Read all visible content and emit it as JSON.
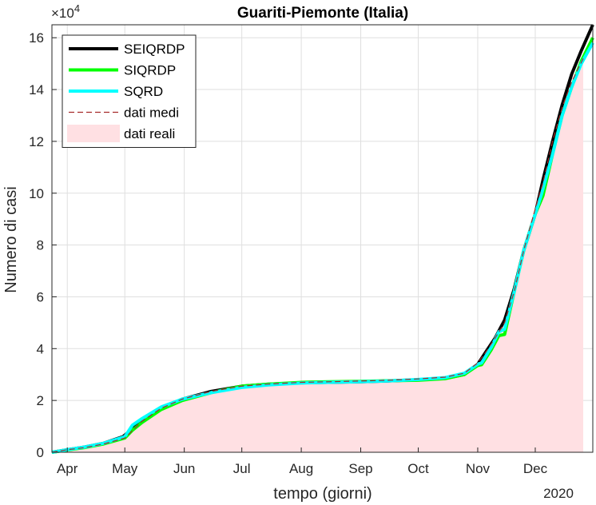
{
  "chart_data": {
    "type": "line",
    "title": "Guariti-Piemonte (Italia)",
    "xlabel": "tempo (giorni)",
    "ylabel": "Numero di casi",
    "y_exponent_label": "×10",
    "y_exponent_power": "4",
    "year_label": "2020",
    "xlim": [
      "2020-03-24",
      "2020-12-31"
    ],
    "ylim": [
      0,
      165000
    ],
    "grid": true,
    "legend_position": "top-left",
    "x_ticks": [
      {
        "date": "2020-04-01",
        "label": "Apr"
      },
      {
        "date": "2020-05-01",
        "label": "May"
      },
      {
        "date": "2020-06-01",
        "label": "Jun"
      },
      {
        "date": "2020-07-01",
        "label": "Jul"
      },
      {
        "date": "2020-08-01",
        "label": "Aug"
      },
      {
        "date": "2020-09-01",
        "label": "Sep"
      },
      {
        "date": "2020-10-01",
        "label": "Oct"
      },
      {
        "date": "2020-11-01",
        "label": "Nov"
      },
      {
        "date": "2020-12-01",
        "label": "Dec"
      }
    ],
    "y_ticks": [
      {
        "value": 0,
        "label": "0"
      },
      {
        "value": 20000,
        "label": "2"
      },
      {
        "value": 40000,
        "label": "4"
      },
      {
        "value": 60000,
        "label": "6"
      },
      {
        "value": 80000,
        "label": "8"
      },
      {
        "value": 100000,
        "label": "10"
      },
      {
        "value": 120000,
        "label": "12"
      },
      {
        "value": 140000,
        "label": "14"
      },
      {
        "value": 160000,
        "label": "16"
      }
    ],
    "series": [
      {
        "name": "SEIQRDP",
        "kind": "line",
        "color": "#000000",
        "x": [
          "2020-03-24",
          "2020-04-01",
          "2020-04-10",
          "2020-04-20",
          "2020-04-30",
          "2020-05-10",
          "2020-05-20",
          "2020-05-31",
          "2020-06-15",
          "2020-07-01",
          "2020-07-15",
          "2020-08-01",
          "2020-08-15",
          "2020-09-01",
          "2020-09-15",
          "2020-10-01",
          "2020-10-15",
          "2020-10-25",
          "2020-11-01",
          "2020-11-05",
          "2020-11-10",
          "2020-11-15",
          "2020-11-20",
          "2020-11-25",
          "2020-12-01",
          "2020-12-05",
          "2020-12-10",
          "2020-12-15",
          "2020-12-20",
          "2020-12-25",
          "2020-12-31"
        ],
        "y": [
          0,
          1000,
          2000,
          3500,
          6000,
          12000,
          17000,
          20500,
          23500,
          25500,
          26300,
          26800,
          27000,
          27200,
          27500,
          28000,
          28500,
          30000,
          34000,
          38500,
          44000,
          51000,
          63000,
          78000,
          92000,
          105000,
          120000,
          134000,
          146000,
          155000,
          165000
        ]
      },
      {
        "name": "SIQRDP",
        "kind": "line",
        "color": "#00ff00",
        "x": [
          "2020-03-24",
          "2020-04-01",
          "2020-04-10",
          "2020-04-20",
          "2020-05-01",
          "2020-05-05",
          "2020-05-10",
          "2020-05-20",
          "2020-05-31",
          "2020-06-15",
          "2020-07-01",
          "2020-07-15",
          "2020-08-01",
          "2020-08-15",
          "2020-09-01",
          "2020-09-15",
          "2020-10-01",
          "2020-10-15",
          "2020-10-25",
          "2020-11-01",
          "2020-11-03",
          "2020-11-08",
          "2020-11-12",
          "2020-11-15",
          "2020-11-20",
          "2020-11-25",
          "2020-12-01",
          "2020-12-05",
          "2020-12-10",
          "2020-12-15",
          "2020-12-20",
          "2020-12-25",
          "2020-12-31"
        ],
        "y": [
          0,
          900,
          1800,
          3200,
          5500,
          8500,
          11500,
          16500,
          20000,
          23000,
          25500,
          26300,
          27000,
          27200,
          27400,
          27600,
          27800,
          28400,
          30000,
          33500,
          33800,
          39500,
          45000,
          45500,
          62000,
          78000,
          92000,
          99000,
          115000,
          130000,
          141000,
          151000,
          160000
        ]
      },
      {
        "name": "SQRD",
        "kind": "line",
        "color": "#00ffff",
        "x": [
          "2020-03-24",
          "2020-04-01",
          "2020-04-10",
          "2020-04-20",
          "2020-05-01",
          "2020-05-05",
          "2020-05-10",
          "2020-05-20",
          "2020-05-31",
          "2020-06-15",
          "2020-07-01",
          "2020-07-15",
          "2020-08-01",
          "2020-08-15",
          "2020-09-01",
          "2020-09-15",
          "2020-10-01",
          "2020-10-15",
          "2020-10-25",
          "2020-11-01",
          "2020-11-03",
          "2020-11-08",
          "2020-11-12",
          "2020-11-15",
          "2020-11-20",
          "2020-11-25",
          "2020-12-01",
          "2020-12-04",
          "2020-12-10",
          "2020-12-15",
          "2020-12-20",
          "2020-12-25",
          "2020-12-31"
        ],
        "y": [
          0,
          1000,
          2000,
          3500,
          6000,
          10500,
          13000,
          17500,
          20500,
          23000,
          25000,
          26000,
          26700,
          27000,
          27200,
          27500,
          28100,
          28800,
          30500,
          34000,
          34500,
          40500,
          46500,
          47500,
          62000,
          78000,
          92000,
          99000,
          115000,
          130000,
          141000,
          150000,
          158000
        ]
      },
      {
        "name": "dati medi",
        "kind": "dashed",
        "color": "#a52a2a",
        "x": [
          "2020-03-24",
          "2020-04-01",
          "2020-04-10",
          "2020-04-20",
          "2020-05-01",
          "2020-05-10",
          "2020-05-20",
          "2020-05-31",
          "2020-06-15",
          "2020-07-01",
          "2020-07-15",
          "2020-08-01",
          "2020-08-15",
          "2020-09-01",
          "2020-09-15",
          "2020-10-01",
          "2020-10-15",
          "2020-10-25",
          "2020-11-01",
          "2020-11-05",
          "2020-11-10",
          "2020-11-15",
          "2020-11-20",
          "2020-11-25",
          "2020-12-01",
          "2020-12-05",
          "2020-12-10",
          "2020-12-15",
          "2020-12-20",
          "2020-12-26"
        ],
        "y": [
          0,
          1000,
          1800,
          3200,
          5500,
          12000,
          17000,
          20500,
          23500,
          25500,
          26300,
          27000,
          27200,
          27500,
          27800,
          28300,
          29000,
          30500,
          34500,
          38500,
          44000,
          50000,
          62000,
          78000,
          94000,
          104000,
          120000,
          133000,
          143000,
          152000
        ]
      },
      {
        "name": "dati reali",
        "kind": "area",
        "color": "#ffe0e3",
        "x": [
          "2020-03-24",
          "2020-04-01",
          "2020-04-10",
          "2020-04-20",
          "2020-05-01",
          "2020-05-10",
          "2020-05-20",
          "2020-05-31",
          "2020-06-15",
          "2020-07-01",
          "2020-07-15",
          "2020-08-01",
          "2020-08-15",
          "2020-09-01",
          "2020-09-15",
          "2020-10-01",
          "2020-10-15",
          "2020-10-25",
          "2020-11-01",
          "2020-11-05",
          "2020-11-10",
          "2020-11-15",
          "2020-11-20",
          "2020-11-25",
          "2020-12-01",
          "2020-12-05",
          "2020-12-10",
          "2020-12-15",
          "2020-12-20",
          "2020-12-26"
        ],
        "y": [
          0,
          800,
          1700,
          3000,
          5000,
          11000,
          16000,
          20000,
          23000,
          25000,
          26000,
          26500,
          26700,
          27000,
          27300,
          27800,
          28500,
          30000,
          34000,
          38000,
          43500,
          49000,
          61000,
          77000,
          93000,
          103000,
          118000,
          132000,
          142000,
          151000
        ]
      }
    ]
  }
}
